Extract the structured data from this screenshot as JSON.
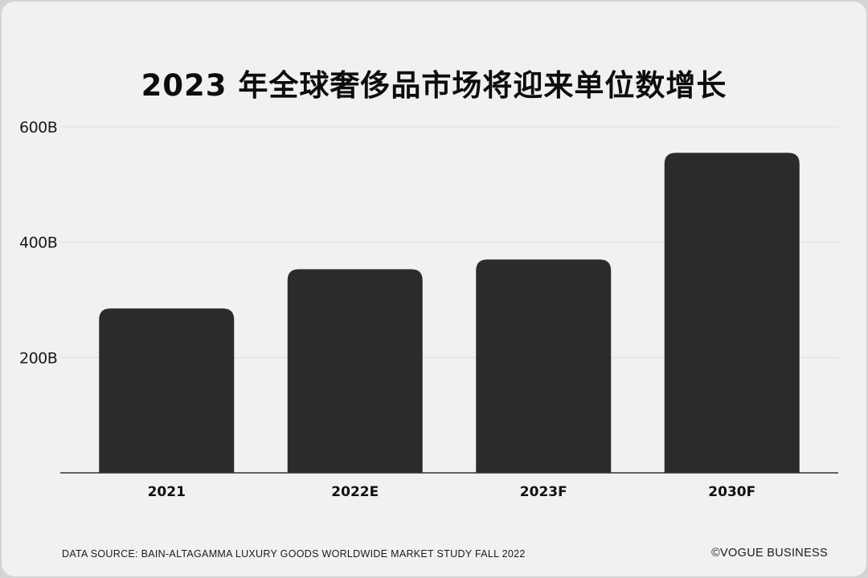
{
  "title": "2023 年全球奢侈品市场将迎来单位数增长",
  "source": "DATA SOURCE: BAIN-ALTAGAMMA LUXURY GOODS WORLDWIDE MARKET STUDY FALL 2022",
  "brand": "©VOGUE BUSINESS",
  "colors": {
    "bar": "#2b2b2b",
    "grid": "#dcdcdc",
    "axis": "#333333",
    "background": "#f1f1f1"
  },
  "chart_data": {
    "type": "bar",
    "title": "2023 年全球奢侈品市场将迎来单位数增长",
    "categories": [
      "2021",
      "2022E",
      "2023F",
      "2030F"
    ],
    "values": [
      285,
      353,
      370,
      555
    ],
    "ylim": [
      0,
      600
    ],
    "yticks": [
      200,
      400,
      600
    ],
    "ytick_labels": [
      "200B",
      "400B",
      "600B"
    ],
    "xlabel": "",
    "ylabel": "",
    "grid": true
  }
}
